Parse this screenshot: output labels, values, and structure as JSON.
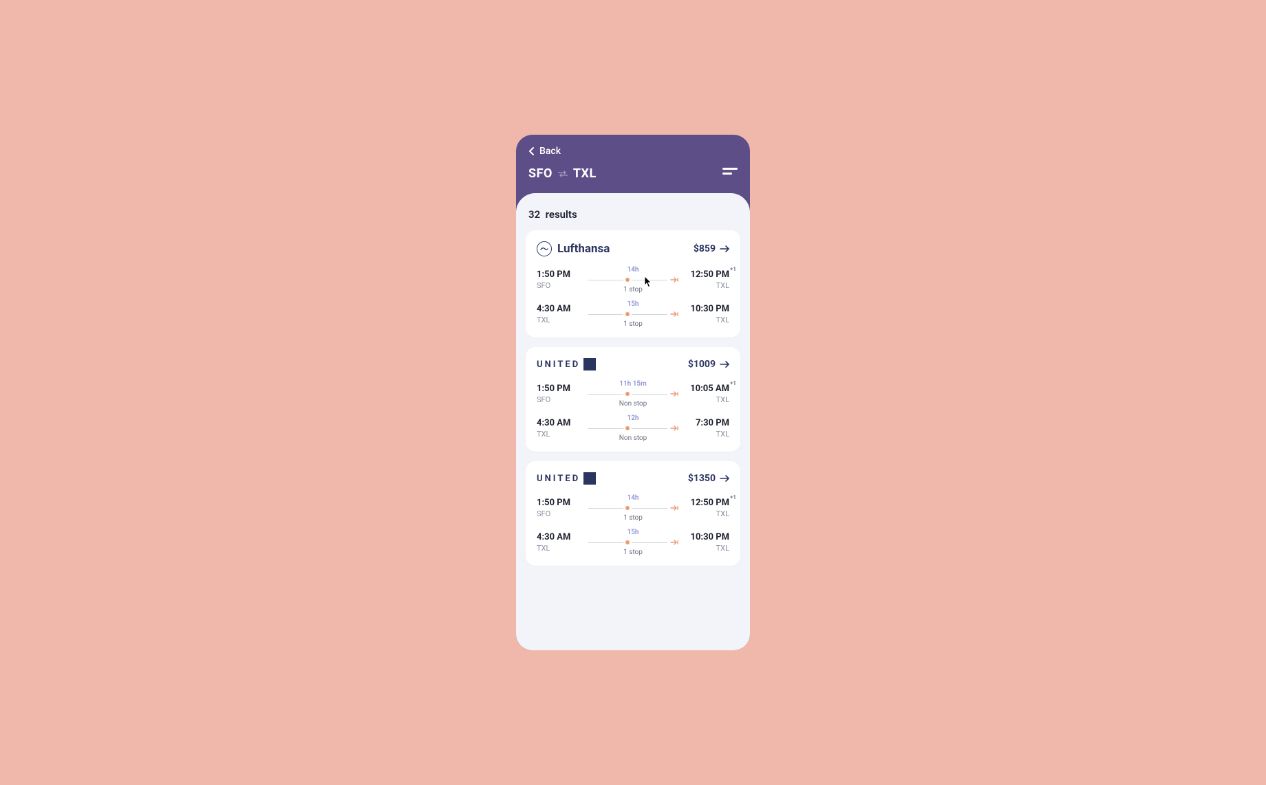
{
  "colors": {
    "page_bg": "#f0b8ab",
    "header_bg": "#5e4e87",
    "content_bg": "#f3f4f9",
    "card_bg": "#ffffff",
    "text_primary": "#1f2230",
    "text_brand": "#2a3560",
    "text_muted": "#8a90a2",
    "duration": "#9093d1",
    "accent_orange": "#ea9b74",
    "line": "#d4d6de"
  },
  "header": {
    "back_label": "Back",
    "origin": "SFO",
    "destination": "TXL"
  },
  "results_count": "32",
  "results_word": "results",
  "flights": [
    {
      "airline_type": "lufthansa",
      "airline_label": "Lufthansa",
      "price": "$859",
      "legs": [
        {
          "dep_time": "1:50 PM",
          "dep_code": "SFO",
          "duration": "14h",
          "stops": "1 stop",
          "arr_time": "12:50 PM",
          "arr_code": "TXL",
          "arr_day_offset": "+1"
        },
        {
          "dep_time": "4:30 AM",
          "dep_code": "TXL",
          "duration": "15h",
          "stops": "1 stop",
          "arr_time": "10:30 PM",
          "arr_code": "TXL",
          "arr_day_offset": ""
        }
      ]
    },
    {
      "airline_type": "united",
      "airline_label": "UNITED",
      "price": "$1009",
      "legs": [
        {
          "dep_time": "1:50 PM",
          "dep_code": "SFO",
          "duration": "11h 15m",
          "stops": "Non stop",
          "arr_time": "10:05 AM",
          "arr_code": "TXL",
          "arr_day_offset": "+1"
        },
        {
          "dep_time": "4:30 AM",
          "dep_code": "TXL",
          "duration": "12h",
          "stops": "Non stop",
          "arr_time": "7:30 PM",
          "arr_code": "TXL",
          "arr_day_offset": ""
        }
      ]
    },
    {
      "airline_type": "united",
      "airline_label": "UNITED",
      "price": "$1350",
      "legs": [
        {
          "dep_time": "1:50 PM",
          "dep_code": "SFO",
          "duration": "14h",
          "stops": "1 stop",
          "arr_time": "12:50 PM",
          "arr_code": "TXL",
          "arr_day_offset": "+1"
        },
        {
          "dep_time": "4:30 AM",
          "dep_code": "TXL",
          "duration": "15h",
          "stops": "1 stop",
          "arr_time": "10:30 PM",
          "arr_code": "TXL",
          "arr_day_offset": ""
        }
      ]
    }
  ]
}
